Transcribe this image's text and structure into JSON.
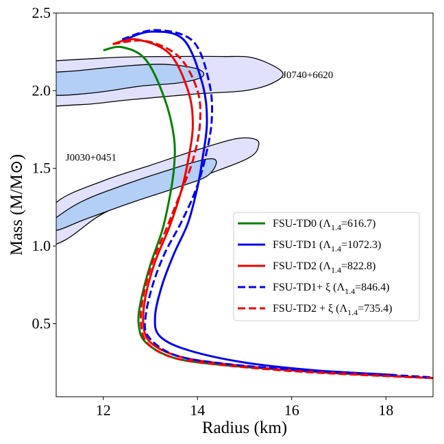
{
  "chart_data": {
    "type": "line",
    "xlabel": "Radius (km)",
    "ylabel": "Mass (M/M⊙)",
    "xlim": [
      11.0,
      19.0
    ],
    "ylim": [
      0.03,
      2.5
    ],
    "x_ticks": [
      12,
      14,
      16,
      18
    ],
    "y_ticks": [
      0.5,
      1.0,
      1.5,
      2.0,
      2.5
    ],
    "x_tick_labels": [
      "12",
      "14",
      "16",
      "18"
    ],
    "y_tick_labels": [
      "0.5",
      "1.0",
      "1.5",
      "2.0",
      "2.5"
    ],
    "grid": false,
    "legend_placement": "center-right",
    "regions": [
      {
        "name": "J0740+6620",
        "label": "J0740+6620",
        "label_pos": [
          15.8,
          2.08
        ],
        "color": "#e1e1fb",
        "inner_color": "#b3cff5",
        "outer": [
          [
            10.3,
            2.15
          ],
          [
            12.0,
            2.21
          ],
          [
            13.5,
            2.22
          ],
          [
            14.5,
            2.22
          ],
          [
            15.2,
            2.21
          ],
          [
            15.8,
            2.12
          ],
          [
            15.6,
            2.05
          ],
          [
            15.0,
            2.0
          ],
          [
            14.0,
            1.98
          ],
          [
            12.5,
            1.94
          ],
          [
            11.5,
            1.91
          ],
          [
            10.3,
            1.92
          ]
        ],
        "inner": [
          [
            10.6,
            2.1
          ],
          [
            11.5,
            2.13
          ],
          [
            12.5,
            2.16
          ],
          [
            13.3,
            2.17
          ],
          [
            14.0,
            2.14
          ],
          [
            14.1,
            2.09
          ],
          [
            13.6,
            2.05
          ],
          [
            12.8,
            2.03
          ],
          [
            11.9,
            1.99
          ],
          [
            11.0,
            1.97
          ],
          [
            10.6,
            2.0
          ]
        ]
      },
      {
        "name": "J0030+0451",
        "label": "J0030+0451",
        "label_pos": [
          11.2,
          1.55
        ],
        "color": "#e1e1fb",
        "inner_color": "#b3cff5",
        "outer": [
          [
            10.6,
            1.05
          ],
          [
            11.0,
            1.28
          ],
          [
            12.0,
            1.42
          ],
          [
            13.0,
            1.52
          ],
          [
            14.0,
            1.62
          ],
          [
            14.8,
            1.69
          ],
          [
            15.2,
            1.69
          ],
          [
            15.3,
            1.65
          ],
          [
            15.1,
            1.57
          ],
          [
            14.2,
            1.46
          ],
          [
            13.0,
            1.33
          ],
          [
            12.0,
            1.21
          ],
          [
            11.2,
            1.04
          ],
          [
            10.6,
            0.98
          ]
        ],
        "inner": [
          [
            10.8,
            1.13
          ],
          [
            11.5,
            1.28
          ],
          [
            12.5,
            1.4
          ],
          [
            13.5,
            1.5
          ],
          [
            14.2,
            1.56
          ],
          [
            14.4,
            1.54
          ],
          [
            14.2,
            1.45
          ],
          [
            13.6,
            1.38
          ],
          [
            12.6,
            1.28
          ],
          [
            11.6,
            1.17
          ],
          [
            11.0,
            1.1
          ]
        ]
      }
    ],
    "series": [
      {
        "name": "FSU-TD0 (Λ1.4=616.7)",
        "legend_main": "FSU-TD0  (Λ",
        "legend_sub": "1.4",
        "legend_tail": "=616.7)",
        "color": "#008000",
        "dash": false,
        "points": [
          [
            12.0,
            2.26
          ],
          [
            12.4,
            2.28
          ],
          [
            12.9,
            2.2
          ],
          [
            13.3,
            1.95
          ],
          [
            13.5,
            1.7
          ],
          [
            13.5,
            1.5
          ],
          [
            13.4,
            1.3
          ],
          [
            13.25,
            1.1
          ],
          [
            13.0,
            0.88
          ],
          [
            12.8,
            0.65
          ],
          [
            12.75,
            0.5
          ],
          [
            12.9,
            0.38
          ],
          [
            13.5,
            0.28
          ],
          [
            14.5,
            0.235
          ],
          [
            16.0,
            0.2
          ],
          [
            17.0,
            0.18
          ],
          [
            18.0,
            0.165
          ],
          [
            19.0,
            0.15
          ]
        ]
      },
      {
        "name": "FSU-TD1 (Λ1.4=1072.3)",
        "legend_main": "FSU-TD1 (Λ",
        "legend_sub": "1.4",
        "legend_tail": "=1072.3)",
        "color": "#0000ee",
        "dash": false,
        "points": [
          [
            12.4,
            2.32
          ],
          [
            13.0,
            2.38
          ],
          [
            13.7,
            2.33
          ],
          [
            14.1,
            2.05
          ],
          [
            14.2,
            1.8
          ],
          [
            14.1,
            1.55
          ],
          [
            14.0,
            1.38
          ],
          [
            13.8,
            1.15
          ],
          [
            13.5,
            0.95
          ],
          [
            13.25,
            0.75
          ],
          [
            13.1,
            0.55
          ],
          [
            13.2,
            0.42
          ],
          [
            13.8,
            0.33
          ],
          [
            15.0,
            0.25
          ],
          [
            16.5,
            0.2
          ],
          [
            18.2,
            0.17
          ]
        ]
      },
      {
        "name": "FSU-TD2 (Λ1.4=822.8)",
        "legend_main": "FSU-TD2  (Λ",
        "legend_sub": "1.4",
        "legend_tail": "=822.8)",
        "color": "#ee0000",
        "dash": false,
        "points": [
          [
            12.2,
            2.3
          ],
          [
            12.7,
            2.33
          ],
          [
            13.4,
            2.24
          ],
          [
            13.8,
            2.0
          ],
          [
            13.9,
            1.78
          ],
          [
            13.8,
            1.55
          ],
          [
            13.65,
            1.35
          ],
          [
            13.4,
            1.12
          ],
          [
            13.1,
            0.9
          ],
          [
            12.9,
            0.68
          ],
          [
            12.85,
            0.5
          ],
          [
            13.0,
            0.38
          ],
          [
            13.6,
            0.29
          ],
          [
            14.6,
            0.24
          ],
          [
            16.0,
            0.2
          ],
          [
            17.5,
            0.175
          ],
          [
            19.0,
            0.15
          ]
        ]
      },
      {
        "name": "FSU-TD1+ξ (Λ1.4=846.4)",
        "legend_main": "FSU-TD1+ ξ (Λ",
        "legend_sub": "1.4",
        "legend_tail": "=846.4)",
        "color": "#0000ee",
        "dash": true,
        "points": [
          [
            12.4,
            2.33
          ],
          [
            13.1,
            2.39
          ],
          [
            13.9,
            2.32
          ],
          [
            14.25,
            2.05
          ],
          [
            14.3,
            1.8
          ],
          [
            14.15,
            1.55
          ],
          [
            13.95,
            1.35
          ],
          [
            13.65,
            1.15
          ],
          [
            13.3,
            0.95
          ],
          [
            13.05,
            0.75
          ],
          [
            12.9,
            0.55
          ],
          [
            12.95,
            0.42
          ],
          [
            13.5,
            0.3
          ],
          [
            14.5,
            0.245
          ],
          [
            16.0,
            0.205
          ],
          [
            17.5,
            0.18
          ],
          [
            19.0,
            0.155
          ]
        ]
      },
      {
        "name": "FSU-TD2 + ξ (Λ1.4=735.4)",
        "legend_main": "FSU-TD2 + ξ  (Λ",
        "legend_sub": "1.4",
        "legend_tail": "=735.4)",
        "color": "#ee0000",
        "dash": true,
        "points": [
          [
            12.2,
            2.3
          ],
          [
            12.9,
            2.32
          ],
          [
            13.6,
            2.22
          ],
          [
            14.0,
            2.0
          ],
          [
            14.05,
            1.78
          ],
          [
            13.9,
            1.55
          ],
          [
            13.65,
            1.35
          ],
          [
            13.35,
            1.12
          ],
          [
            13.05,
            0.9
          ],
          [
            12.85,
            0.68
          ],
          [
            12.8,
            0.5
          ],
          [
            12.95,
            0.37
          ],
          [
            13.5,
            0.28
          ],
          [
            14.5,
            0.235
          ],
          [
            16.0,
            0.195
          ],
          [
            17.5,
            0.17
          ],
          [
            19.0,
            0.15
          ]
        ]
      }
    ]
  }
}
